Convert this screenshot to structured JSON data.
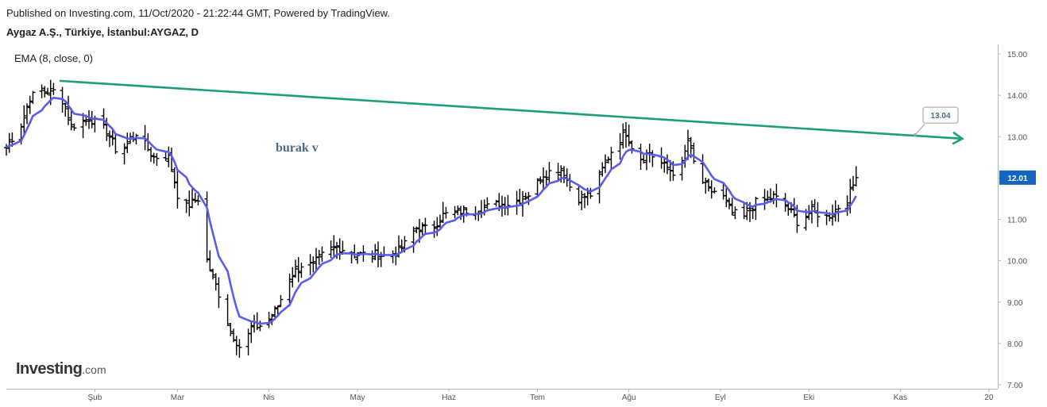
{
  "header": {
    "published": "Published on Investing.com, 11/Oct/2020 - 21:22:44 GMT, Powered by TradingView.",
    "symbol": "Aygaz A.Ş., Türkiye, İstanbul:AYGAZ, D",
    "indicator": "EMA (8, close, 0)"
  },
  "brand": {
    "name": "Investing",
    "suffix": ".com"
  },
  "annotation_text": "burak v",
  "colors": {
    "bars": "#000000",
    "ema": "#5b5bf0",
    "trendline": "#1b9e7a",
    "axis": "#b2b5be",
    "price_badge": "#1565c0"
  },
  "chart_data": {
    "type": "line",
    "y_axis": {
      "min": 7.0,
      "max": 15.0,
      "ticks": [
        "7.00",
        "8.00",
        "9.00",
        "10.00",
        "11.00",
        "12.00",
        "13.00",
        "14.00",
        "15.00"
      ]
    },
    "x_axis": {
      "labels": [
        "Şub",
        "Mar",
        "Nis",
        "May",
        "Haz",
        "Tem",
        "Ağu",
        "Eyl",
        "Eki",
        "Kas",
        "20"
      ],
      "label_days": [
        32,
        60,
        91,
        121,
        152,
        182,
        213,
        244,
        274,
        305,
        335
      ],
      "range_days": [
        2,
        338
      ]
    },
    "last_price": "12.01",
    "trendline": {
      "start": {
        "day": 20,
        "price": 14.35
      },
      "end": {
        "day": 326,
        "price": 12.95
      },
      "label": "13.04",
      "label_point": {
        "day": 310,
        "price": 13.04
      }
    },
    "anchors": [
      {
        "day": 2,
        "price": 12.75
      },
      {
        "day": 7,
        "price": 13.3
      },
      {
        "day": 10,
        "price": 13.95
      },
      {
        "day": 14,
        "price": 14.1
      },
      {
        "day": 20,
        "price": 14.1
      },
      {
        "day": 24,
        "price": 13.25
      },
      {
        "day": 30,
        "price": 13.45
      },
      {
        "day": 36,
        "price": 13.15
      },
      {
        "day": 40,
        "price": 12.55
      },
      {
        "day": 46,
        "price": 13.1
      },
      {
        "day": 52,
        "price": 12.5
      },
      {
        "day": 57,
        "price": 12.55
      },
      {
        "day": 60,
        "price": 11.6
      },
      {
        "day": 63,
        "price": 11.3
      },
      {
        "day": 67,
        "price": 11.5
      },
      {
        "day": 70,
        "price": 10.0
      },
      {
        "day": 75,
        "price": 9.0
      },
      {
        "day": 78,
        "price": 8.3
      },
      {
        "day": 82,
        "price": 7.8
      },
      {
        "day": 85,
        "price": 8.4
      },
      {
        "day": 90,
        "price": 8.45
      },
      {
        "day": 94,
        "price": 8.9
      },
      {
        "day": 98,
        "price": 9.6
      },
      {
        "day": 102,
        "price": 9.9
      },
      {
        "day": 106,
        "price": 9.9
      },
      {
        "day": 110,
        "price": 10.2
      },
      {
        "day": 114,
        "price": 10.35
      },
      {
        "day": 120,
        "price": 10.15
      },
      {
        "day": 128,
        "price": 10.15
      },
      {
        "day": 132,
        "price": 10.1
      },
      {
        "day": 136,
        "price": 10.3
      },
      {
        "day": 141,
        "price": 10.8
      },
      {
        "day": 146,
        "price": 10.75
      },
      {
        "day": 150,
        "price": 11.1
      },
      {
        "day": 156,
        "price": 11.2
      },
      {
        "day": 162,
        "price": 11.25
      },
      {
        "day": 168,
        "price": 11.35
      },
      {
        "day": 174,
        "price": 11.4
      },
      {
        "day": 180,
        "price": 11.65
      },
      {
        "day": 184,
        "price": 12.1
      },
      {
        "day": 190,
        "price": 12.25
      },
      {
        "day": 195,
        "price": 11.5
      },
      {
        "day": 200,
        "price": 11.6
      },
      {
        "day": 204,
        "price": 12.2
      },
      {
        "day": 208,
        "price": 12.8
      },
      {
        "day": 212,
        "price": 13.1
      },
      {
        "day": 216,
        "price": 12.45
      },
      {
        "day": 220,
        "price": 12.6
      },
      {
        "day": 224,
        "price": 12.35
      },
      {
        "day": 230,
        "price": 12.05
      },
      {
        "day": 233,
        "price": 12.9
      },
      {
        "day": 236,
        "price": 12.1
      },
      {
        "day": 240,
        "price": 11.7
      },
      {
        "day": 244,
        "price": 11.65
      },
      {
        "day": 248,
        "price": 11.15
      },
      {
        "day": 252,
        "price": 11.05
      },
      {
        "day": 256,
        "price": 11.4
      },
      {
        "day": 262,
        "price": 11.55
      },
      {
        "day": 266,
        "price": 11.35
      },
      {
        "day": 270,
        "price": 10.95
      },
      {
        "day": 275,
        "price": 11.2
      },
      {
        "day": 280,
        "price": 11.05
      },
      {
        "day": 284,
        "price": 11.3
      },
      {
        "day": 287,
        "price": 11.45
      },
      {
        "day": 290,
        "price": 12.01
      }
    ]
  }
}
